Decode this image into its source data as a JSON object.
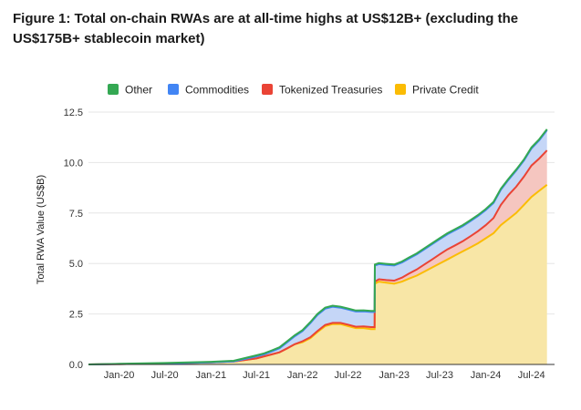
{
  "figure_title": "Figure 1: Total on-chain RWAs are at all-time highs at US$12B+ (excluding the US$175B+ stablecoin market)",
  "colors": {
    "other": "#34a853",
    "commodities": "#4285f4",
    "tokenized_treasuries": "#ea4335",
    "private_credit": "#fbbc04"
  },
  "chart_data": {
    "type": "area",
    "stacked": true,
    "title": "",
    "xlabel": "",
    "ylabel": "Total RWA Value (US$B)",
    "ylim": [
      0,
      12.5
    ],
    "yticks": [
      "0.0",
      "2.5",
      "5.0",
      "7.5",
      "10.0",
      "12.5"
    ],
    "xticks": [
      "Jan-20",
      "Jul-20",
      "Jan-21",
      "Jul-21",
      "Jan-22",
      "Jul-22",
      "Jan-23",
      "Jul-23",
      "Jan-24",
      "Jul-24"
    ],
    "legend_position": "top",
    "x": [
      "2019-09-01",
      "2020-01-01",
      "2020-07-01",
      "2021-01-01",
      "2021-04-01",
      "2021-07-01",
      "2021-08-01",
      "2021-09-01",
      "2021-10-01",
      "2021-11-01",
      "2021-12-01",
      "2022-01-01",
      "2022-02-01",
      "2022-03-01",
      "2022-04-01",
      "2022-05-01",
      "2022-06-01",
      "2022-07-01",
      "2022-08-01",
      "2022-09-01",
      "2022-10-01",
      "2022-10-15",
      "2022-10-16",
      "2022-11-01",
      "2022-12-01",
      "2023-01-01",
      "2023-02-01",
      "2023-03-01",
      "2023-04-01",
      "2023-05-01",
      "2023-06-01",
      "2023-07-01",
      "2023-08-01",
      "2023-09-01",
      "2023-10-01",
      "2023-11-01",
      "2023-12-01",
      "2024-01-01",
      "2024-02-01",
      "2024-03-01",
      "2024-04-01",
      "2024-05-01",
      "2024-06-01",
      "2024-07-01",
      "2024-08-01",
      "2024-09-01"
    ],
    "series": [
      {
        "name": "Private Credit",
        "values": [
          0.0,
          0.02,
          0.05,
          0.1,
          0.15,
          0.3,
          0.4,
          0.5,
          0.6,
          0.8,
          1.0,
          1.1,
          1.3,
          1.6,
          1.9,
          2.0,
          2.0,
          1.9,
          1.8,
          1.8,
          1.75,
          1.75,
          4.0,
          4.1,
          4.05,
          4.0,
          4.1,
          4.25,
          4.4,
          4.6,
          4.8,
          5.0,
          5.2,
          5.4,
          5.6,
          5.8,
          6.0,
          6.25,
          6.5,
          6.9,
          7.2,
          7.5,
          7.9,
          8.3,
          8.6,
          8.9
        ]
      },
      {
        "name": "Tokenized Treasuries",
        "values": [
          0.0,
          0.0,
          0.0,
          0.0,
          0.0,
          0.0,
          0.0,
          0.0,
          0.0,
          0.0,
          0.0,
          0.05,
          0.05,
          0.05,
          0.06,
          0.06,
          0.06,
          0.07,
          0.07,
          0.08,
          0.1,
          0.1,
          0.1,
          0.12,
          0.13,
          0.15,
          0.2,
          0.25,
          0.3,
          0.35,
          0.4,
          0.45,
          0.5,
          0.5,
          0.5,
          0.55,
          0.6,
          0.65,
          0.75,
          1.0,
          1.2,
          1.3,
          1.4,
          1.55,
          1.6,
          1.7
        ]
      },
      {
        "name": "Commodities",
        "values": [
          0.0,
          0.0,
          0.0,
          0.0,
          0.0,
          0.1,
          0.1,
          0.15,
          0.2,
          0.3,
          0.4,
          0.5,
          0.7,
          0.8,
          0.8,
          0.8,
          0.75,
          0.75,
          0.75,
          0.75,
          0.75,
          0.75,
          0.8,
          0.75,
          0.75,
          0.75,
          0.75,
          0.75,
          0.75,
          0.75,
          0.75,
          0.75,
          0.75,
          0.75,
          0.75,
          0.75,
          0.75,
          0.75,
          0.75,
          0.75,
          0.75,
          0.8,
          0.8,
          0.85,
          0.9,
          1.0
        ]
      },
      {
        "name": "Other",
        "values": [
          0.0,
          0.01,
          0.02,
          0.03,
          0.03,
          0.05,
          0.05,
          0.05,
          0.05,
          0.05,
          0.05,
          0.05,
          0.05,
          0.05,
          0.05,
          0.05,
          0.05,
          0.05,
          0.05,
          0.05,
          0.05,
          0.05,
          0.05,
          0.05,
          0.05,
          0.05,
          0.05,
          0.05,
          0.05,
          0.05,
          0.05,
          0.05,
          0.05,
          0.05,
          0.05,
          0.05,
          0.05,
          0.05,
          0.05,
          0.05,
          0.05,
          0.05,
          0.05,
          0.05,
          0.05,
          0.05
        ]
      }
    ],
    "legend": [
      {
        "label": "Other",
        "color_key": "other"
      },
      {
        "label": "Commodities",
        "color_key": "commodities"
      },
      {
        "label": "Tokenized Treasuries",
        "color_key": "tokenized_treasuries"
      },
      {
        "label": "Private Credit",
        "color_key": "private_credit"
      }
    ]
  }
}
